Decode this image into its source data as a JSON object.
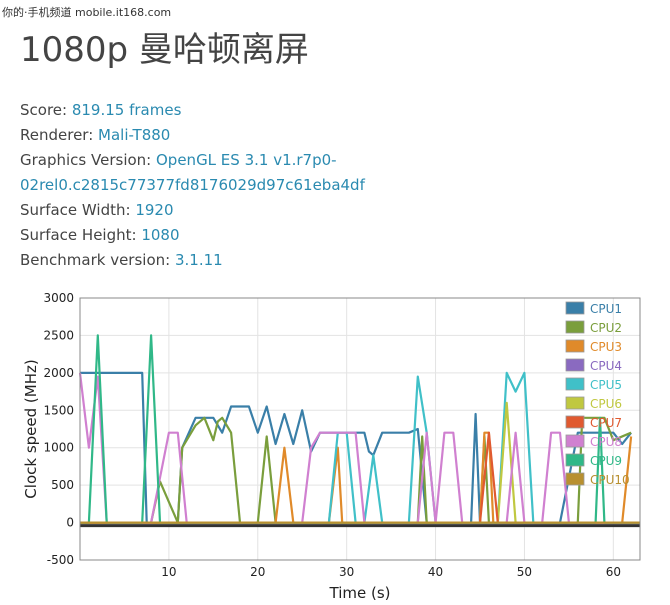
{
  "watermark": "你的·手机频道 mobile.it168.com",
  "title": "1080p 曼哈顿离屏",
  "info": {
    "score_label": "Score: ",
    "score": "819.15 frames",
    "renderer_label": "Renderer: ",
    "renderer": "Mali-T880",
    "gfx_label": "Graphics Version: ",
    "gfx_line1": "OpenGL ES 3.1 v1.r7p0-",
    "gfx_line2": "02rel0.c2815c77377fd8176029d97c61eba4df",
    "width_label": "Surface Width: ",
    "width": "1920",
    "height_label": "Surface Height: ",
    "height": "1080",
    "bench_label": "Benchmark version: ",
    "bench": "3.1.11"
  },
  "chart_data": {
    "type": "line",
    "xlabel": "Time (s)",
    "ylabel": "Clock speed (MHz)",
    "xlim": [
      0,
      63
    ],
    "ylim": [
      -500,
      3000
    ],
    "xticks": [
      10,
      20,
      30,
      40,
      50,
      60
    ],
    "yticks": [
      -500,
      0,
      500,
      1000,
      1500,
      2000,
      2500,
      3000
    ],
    "grid": true,
    "legend_position": "right",
    "series": [
      {
        "name": "CPU1",
        "color": "#3a7fa8",
        "points": [
          [
            0,
            2000
          ],
          [
            7,
            2000
          ],
          [
            7.5,
            0
          ],
          [
            11,
            0
          ],
          [
            11.5,
            1000
          ],
          [
            13,
            1400
          ],
          [
            15,
            1400
          ],
          [
            16,
            1200
          ],
          [
            17,
            1550
          ],
          [
            19,
            1550
          ],
          [
            20,
            1200
          ],
          [
            21,
            1550
          ],
          [
            22,
            1050
          ],
          [
            23,
            1450
          ],
          [
            24,
            1050
          ],
          [
            25,
            1500
          ],
          [
            26,
            950
          ],
          [
            27,
            1200
          ],
          [
            32,
            1200
          ],
          [
            32.5,
            950
          ],
          [
            33,
            900
          ],
          [
            34,
            1200
          ],
          [
            37,
            1200
          ],
          [
            38,
            1250
          ],
          [
            39,
            0
          ],
          [
            44,
            0
          ],
          [
            44.5,
            1450
          ],
          [
            45,
            0
          ],
          [
            54,
            0
          ],
          [
            56,
            1200
          ],
          [
            60,
            1200
          ],
          [
            61,
            1050
          ],
          [
            62,
            1200
          ]
        ]
      },
      {
        "name": "CPU2",
        "color": "#7a9e3c",
        "points": [
          [
            0,
            0
          ],
          [
            8,
            0
          ],
          [
            9,
            550
          ],
          [
            11,
            0
          ],
          [
            11.5,
            1000
          ],
          [
            12,
            1100
          ],
          [
            13,
            1300
          ],
          [
            14,
            1400
          ],
          [
            15,
            1100
          ],
          [
            15.5,
            1350
          ],
          [
            16,
            1400
          ],
          [
            17,
            1200
          ],
          [
            18,
            0
          ],
          [
            20,
            0
          ],
          [
            21,
            1150
          ],
          [
            22,
            0
          ],
          [
            38,
            0
          ],
          [
            38.5,
            1150
          ],
          [
            39,
            0
          ],
          [
            45,
            0
          ],
          [
            45.5,
            1150
          ],
          [
            46,
            0
          ],
          [
            54,
            0
          ],
          [
            56,
            0
          ],
          [
            56.5,
            1400
          ],
          [
            59,
            1400
          ],
          [
            60,
            1100
          ],
          [
            62,
            1200
          ]
        ]
      },
      {
        "name": "CPU3",
        "color": "#e08a2a",
        "points": [
          [
            0,
            0
          ],
          [
            22,
            0
          ],
          [
            23,
            1000
          ],
          [
            24,
            0
          ],
          [
            28,
            0
          ],
          [
            29,
            1000
          ],
          [
            29.5,
            0
          ],
          [
            45,
            0
          ],
          [
            45.5,
            1200
          ],
          [
            46,
            1200
          ],
          [
            46.5,
            0
          ],
          [
            61,
            0
          ],
          [
            62,
            1150
          ]
        ]
      },
      {
        "name": "CPU4",
        "color": "#8a6ac0",
        "points": [
          [
            0,
            0
          ],
          [
            63,
            0
          ]
        ]
      },
      {
        "name": "CPU5",
        "color": "#40c0c8",
        "points": [
          [
            0,
            0
          ],
          [
            28,
            0
          ],
          [
            29,
            1200
          ],
          [
            30,
            1200
          ],
          [
            31,
            0
          ],
          [
            32,
            0
          ],
          [
            33,
            900
          ],
          [
            34,
            0
          ],
          [
            37,
            0
          ],
          [
            38,
            1950
          ],
          [
            39,
            1200
          ],
          [
            40,
            0
          ],
          [
            47,
            0
          ],
          [
            48,
            2000
          ],
          [
            49,
            1750
          ],
          [
            50,
            2000
          ],
          [
            51,
            0
          ],
          [
            63,
            0
          ]
        ]
      },
      {
        "name": "CPU6",
        "color": "#c0c840",
        "points": [
          [
            0,
            0
          ],
          [
            47,
            0
          ],
          [
            48,
            1600
          ],
          [
            49,
            0
          ],
          [
            63,
            0
          ]
        ]
      },
      {
        "name": "CPU7",
        "color": "#e05a30",
        "points": [
          [
            0,
            0
          ],
          [
            45,
            0
          ],
          [
            46,
            1200
          ],
          [
            47,
            0
          ],
          [
            63,
            0
          ]
        ]
      },
      {
        "name": "CPU8",
        "color": "#d080d0",
        "points": [
          [
            0,
            2000
          ],
          [
            1,
            1000
          ],
          [
            2,
            1950
          ],
          [
            3,
            0
          ],
          [
            8,
            0
          ],
          [
            9,
            600
          ],
          [
            10,
            1200
          ],
          [
            11,
            1200
          ],
          [
            12,
            0
          ],
          [
            25,
            0
          ],
          [
            26,
            1000
          ],
          [
            27,
            1200
          ],
          [
            31,
            1200
          ],
          [
            32,
            0
          ],
          [
            38,
            0
          ],
          [
            39,
            1200
          ],
          [
            40,
            0
          ],
          [
            41,
            1200
          ],
          [
            42,
            1200
          ],
          [
            43,
            0
          ],
          [
            48,
            0
          ],
          [
            49,
            1200
          ],
          [
            50,
            0
          ],
          [
            52,
            0
          ],
          [
            53,
            1200
          ],
          [
            54,
            1200
          ],
          [
            55,
            0
          ],
          [
            63,
            0
          ]
        ]
      },
      {
        "name": "CPU9",
        "color": "#30b888",
        "points": [
          [
            0,
            0
          ],
          [
            1,
            0
          ],
          [
            2,
            2500
          ],
          [
            3,
            0
          ],
          [
            7,
            0
          ],
          [
            8,
            2500
          ],
          [
            9,
            0
          ],
          [
            58,
            0
          ],
          [
            58.5,
            1400
          ],
          [
            59,
            0
          ],
          [
            63,
            0
          ]
        ]
      },
      {
        "name": "CPU10",
        "color": "#b89030",
        "points": [
          [
            0,
            0
          ],
          [
            63,
            0
          ]
        ]
      }
    ]
  }
}
